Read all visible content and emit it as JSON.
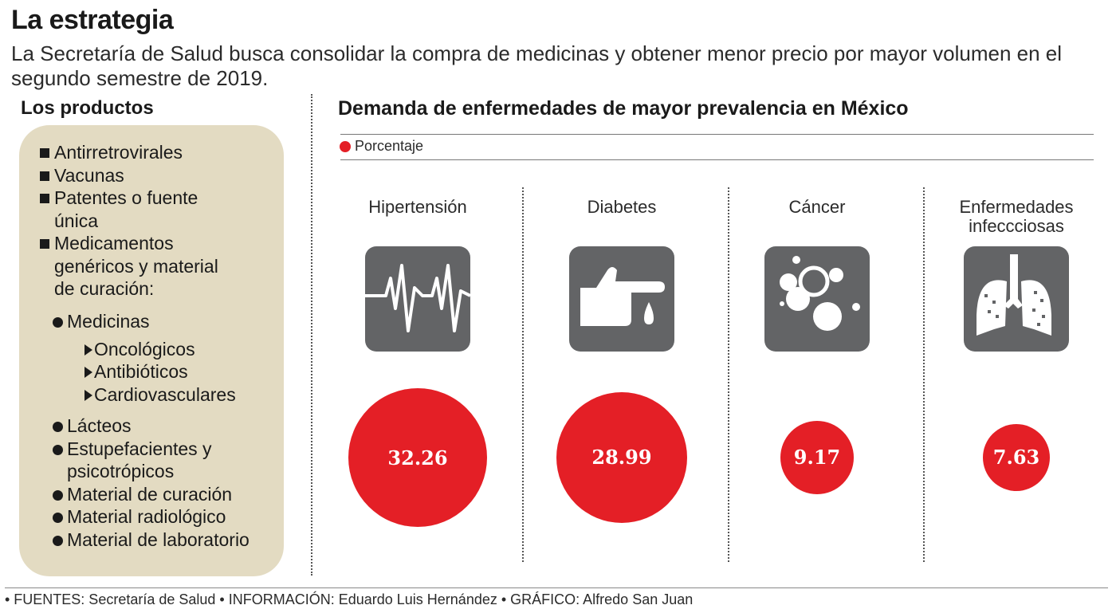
{
  "title": "La estrategia",
  "subtitle": "La Secretaría de Salud busca consolidar la compra de medicinas y obtener menor precio por mayor volumen en el segundo semestre de 2019.",
  "products": {
    "title": "Los productos",
    "items": [
      {
        "lines": [
          "Antirretrovirales"
        ]
      },
      {
        "lines": [
          "Vacunas"
        ]
      },
      {
        "lines": [
          "Patentes o fuente",
          "única"
        ]
      },
      {
        "lines": [
          "Medicamentos",
          "genéricos y material",
          "de curación:"
        ]
      }
    ],
    "medicinas": {
      "label": "Medicinas",
      "sub": [
        "Oncológicos",
        "Antibióticos",
        "Cardiovasculares"
      ]
    },
    "others": [
      {
        "lines": [
          "Lácteos"
        ]
      },
      {
        "lines": [
          "Estupefacientes y",
          "psicotrópicos"
        ]
      },
      {
        "lines": [
          "Material de curación"
        ]
      },
      {
        "lines": [
          "Material radiológico"
        ]
      },
      {
        "lines": [
          "Material de laboratorio"
        ]
      }
    ]
  },
  "chart_data": {
    "type": "bubble",
    "title": "Demanda de enfermedades de mayor prevalencia en México",
    "legend": {
      "label": "Porcentaje",
      "color": "#e41f26",
      "position": "top-left"
    },
    "categories": [
      {
        "lines": [
          "Hipertensión"
        ],
        "icon": "heartbeat-icon"
      },
      {
        "lines": [
          "Diabetes"
        ],
        "icon": "finger-drop-icon"
      },
      {
        "lines": [
          "Cáncer"
        ],
        "icon": "cells-icon"
      },
      {
        "lines": [
          "Enfermedades",
          "infeccciosas"
        ],
        "icon": "lungs-icon"
      }
    ],
    "values": [
      32.26,
      28.99,
      9.17,
      7.63
    ],
    "value_labels": [
      "32.26",
      "28.99",
      "9.17",
      "7.63"
    ],
    "colors": {
      "bubble": "#e41f26",
      "icon_bg": "#636466"
    }
  },
  "footer": "• FUENTES: Secretaría de Salud • INFORMACIÓN: Eduardo Luis Hernández • GRÁFICO: Alfredo San Juan"
}
